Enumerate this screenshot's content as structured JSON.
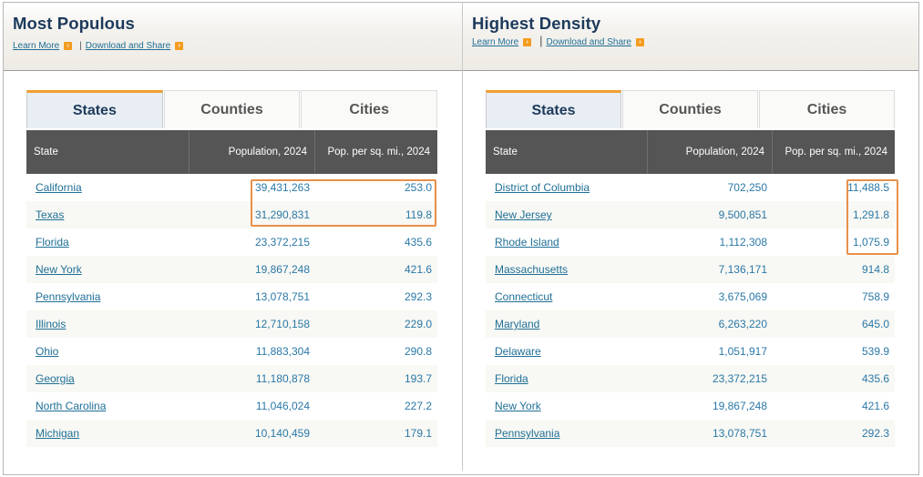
{
  "accent_color": "#f0a030",
  "highlight_color": "#e8914a",
  "left": {
    "title": "Most Populous",
    "learn_more": "Learn More",
    "separator": "|",
    "download": "Download and Share",
    "tabs": [
      "States",
      "Counties",
      "Cities"
    ],
    "active_tab": "States",
    "headers": [
      "State",
      "Population, 2024",
      "Pop. per sq. mi., 2024"
    ],
    "rows": [
      [
        "California",
        "39,431,263",
        "253.0"
      ],
      [
        "Texas",
        "31,290,831",
        "119.8"
      ],
      [
        "Florida",
        "23,372,215",
        "435.6"
      ],
      [
        "New York",
        "19,867,248",
        "421.6"
      ],
      [
        "Pennsylvania",
        "13,078,751",
        "292.3"
      ],
      [
        "Illinois",
        "12,710,158",
        "229.0"
      ],
      [
        "Ohio",
        "11,883,304",
        "290.8"
      ],
      [
        "Georgia",
        "11,180,878",
        "193.7"
      ],
      [
        "North Carolina",
        "11,046,024",
        "227.2"
      ],
      [
        "Michigan",
        "10,140,459",
        "179.1"
      ]
    ]
  },
  "right": {
    "title": "Highest Density",
    "learn_more": "Learn More",
    "separator": "|",
    "download": "Download and Share",
    "tabs": [
      "States",
      "Counties",
      "Cities"
    ],
    "active_tab": "States",
    "headers": [
      "State",
      "Population, 2024",
      "Pop. per sq. mi., 2024"
    ],
    "rows": [
      [
        "District of Columbia",
        "702,250",
        "11,488.5"
      ],
      [
        "New Jersey",
        "9,500,851",
        "1,291.8"
      ],
      [
        "Rhode Island",
        "1,112,308",
        "1,075.9"
      ],
      [
        "Massachusetts",
        "7,136,171",
        "914.8"
      ],
      [
        "Connecticut",
        "3,675,069",
        "758.9"
      ],
      [
        "Maryland",
        "6,263,220",
        "645.0"
      ],
      [
        "Delaware",
        "1,051,917",
        "539.9"
      ],
      [
        "Florida",
        "23,372,215",
        "435.6"
      ],
      [
        "New York",
        "19,867,248",
        "421.6"
      ],
      [
        "Pennsylvania",
        "13,078,751",
        "292.3"
      ]
    ]
  }
}
